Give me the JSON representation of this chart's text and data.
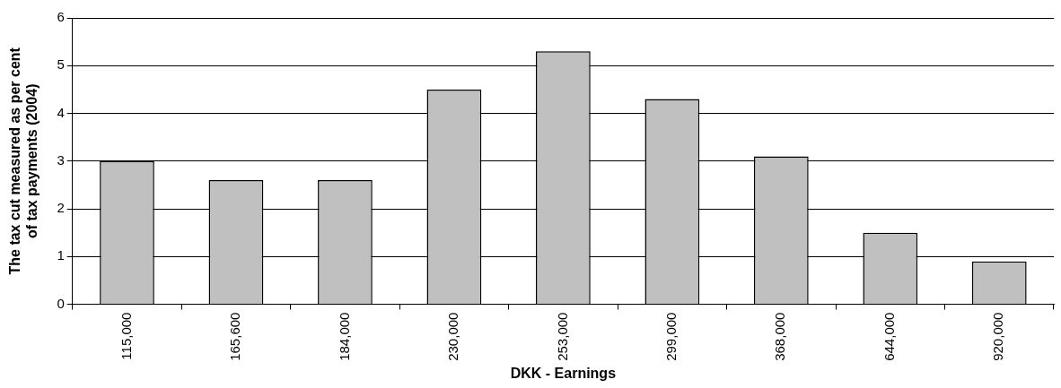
{
  "chart_data": {
    "type": "bar",
    "xlabel": "DKK - Earnings",
    "ylabel": "The tax cut measured as per cent\nof tax payments (2004)",
    "categories": [
      "115,000",
      "165,600",
      "184,000",
      "230,000",
      "253,000",
      "299,000",
      "368,000",
      "644,000",
      "920,000"
    ],
    "values": [
      3.0,
      2.6,
      2.6,
      4.5,
      5.3,
      4.3,
      3.1,
      1.5,
      0.9
    ],
    "color": "#c0c0c0",
    "ylim": [
      0,
      6
    ],
    "yticks": [
      0,
      1,
      2,
      3,
      4,
      5,
      6
    ],
    "grid": "y",
    "legend": false
  }
}
